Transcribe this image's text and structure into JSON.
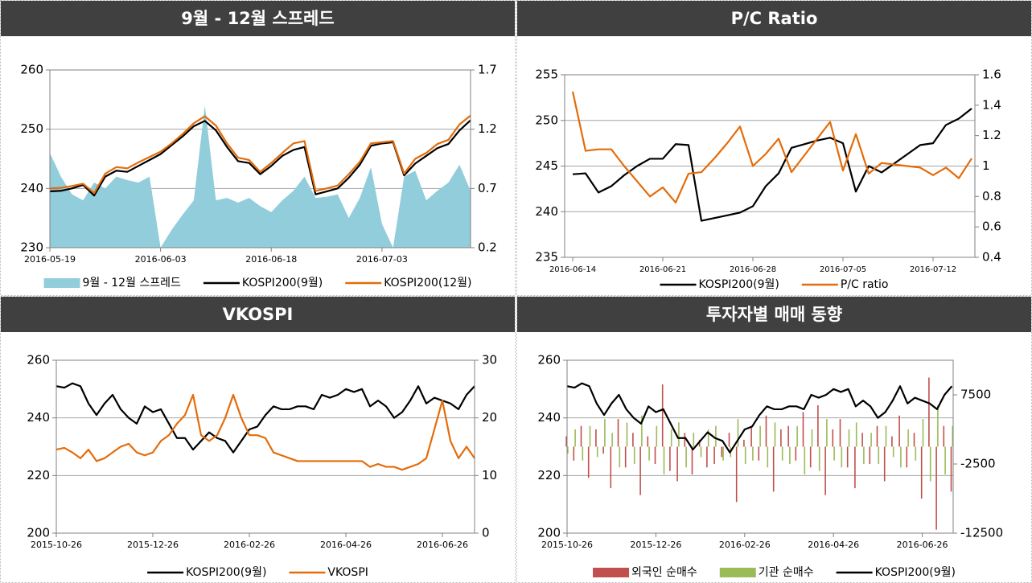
{
  "chart_data": [
    {
      "type": "area_line",
      "title": "9월 - 12월 스프레드",
      "categories": [
        "2016-05-19",
        null,
        null,
        null,
        null,
        null,
        null,
        null,
        null,
        null,
        "2016-06-03",
        null,
        null,
        null,
        null,
        null,
        null,
        null,
        null,
        null,
        "2016-06-18",
        null,
        null,
        null,
        null,
        null,
        null,
        null,
        null,
        null,
        "2016-07-03",
        null,
        null,
        null,
        null,
        null,
        null,
        null,
        null
      ],
      "ylim": [
        230,
        260
      ],
      "yticks": [
        230,
        240,
        250,
        260
      ],
      "y2lim": [
        0.2,
        1.7
      ],
      "y2ticks": [
        0.2,
        0.7,
        1.2,
        1.7
      ],
      "grid": true,
      "legend": "bottom",
      "series": [
        {
          "name": "9월 - 12월 스프레드",
          "kind": "area",
          "axis": "y2",
          "color": "#92cddc",
          "values": [
            1.0,
            0.8,
            0.65,
            0.6,
            0.75,
            0.7,
            0.8,
            0.77,
            0.75,
            0.8,
            0.2,
            0.35,
            0.48,
            0.6,
            1.4,
            0.6,
            0.62,
            0.58,
            0.62,
            0.55,
            0.5,
            0.6,
            0.68,
            0.8,
            0.62,
            0.63,
            0.65,
            0.45,
            0.62,
            0.88,
            0.4,
            0.2,
            0.8,
            0.85,
            0.6,
            0.68,
            0.75,
            0.9,
            0.68
          ]
        },
        {
          "name": "KOSPI200(9월)",
          "kind": "line",
          "color": "#000000",
          "values": [
            239.5,
            239.6,
            240.0,
            240.6,
            238.8,
            242.0,
            243.0,
            242.8,
            243.8,
            244.8,
            245.8,
            247.3,
            248.8,
            250.5,
            251.4,
            249.8,
            247.0,
            244.6,
            244.3,
            242.4,
            243.8,
            245.5,
            246.5,
            247.0,
            239.0,
            239.5,
            240.0,
            241.8,
            244.0,
            247.2,
            247.6,
            247.8,
            242.2,
            244.2,
            245.5,
            246.8,
            247.5,
            249.8,
            251.5
          ]
        },
        {
          "name": "KOSPI200(12월)",
          "kind": "line",
          "color": "#e46c0a",
          "values": [
            240.0,
            240.1,
            240.4,
            240.8,
            239.2,
            242.5,
            243.6,
            243.4,
            244.4,
            245.3,
            246.2,
            247.6,
            249.2,
            251.0,
            252.2,
            250.6,
            247.6,
            245.2,
            244.8,
            242.8,
            244.3,
            246.0,
            247.6,
            248.0,
            239.6,
            240.0,
            240.5,
            242.4,
            244.5,
            247.6,
            247.8,
            248.0,
            242.5,
            245.0,
            246.0,
            247.5,
            248.2,
            250.8,
            252.3
          ]
        }
      ]
    },
    {
      "type": "line",
      "title": "P/C Ratio",
      "categories": [
        "2016-06-14",
        null,
        null,
        null,
        null,
        null,
        null,
        "2016-06-21",
        null,
        null,
        null,
        null,
        null,
        null,
        "2016-06-28",
        null,
        null,
        null,
        null,
        null,
        null,
        "2016-07-05",
        null,
        null,
        null,
        null,
        null,
        null,
        "2016-07-12",
        null,
        null,
        null
      ],
      "ylim": [
        235,
        255
      ],
      "yticks": [
        235,
        240,
        245,
        250,
        255
      ],
      "y2lim": [
        0.4,
        1.6
      ],
      "y2ticks": [
        0.4,
        0.6,
        0.8,
        1,
        1.2,
        1.4,
        1.6
      ],
      "grid": true,
      "legend": "bottom",
      "series": [
        {
          "name": "KOSPI200(9월)",
          "kind": "line",
          "color": "#000000",
          "values": [
            244.1,
            244.2,
            242.1,
            242.8,
            244,
            245,
            245.8,
            245.8,
            247.4,
            247.3,
            239.0,
            239.3,
            239.6,
            239.9,
            240.6,
            242.8,
            244.2,
            247.0,
            247.4,
            247.8,
            248.1,
            247.5,
            242.2,
            245.0,
            244.3,
            245.3,
            246.3,
            247.3,
            247.5,
            249.5,
            250.2,
            251.3
          ]
        },
        {
          "name": "P/C ratio",
          "kind": "line",
          "axis": "y2",
          "color": "#e46c0a",
          "values": [
            1.49,
            1.1,
            1.11,
            1.11,
            1.0,
            0.9,
            0.8,
            0.86,
            0.76,
            0.95,
            0.96,
            1.05,
            1.15,
            1.26,
            1.0,
            1.08,
            1.18,
            0.96,
            1.07,
            1.18,
            1.29,
            0.97,
            1.21,
            0.95,
            1.02,
            1.01,
            1.0,
            0.99,
            0.94,
            0.99,
            0.92,
            1.05
          ]
        }
      ]
    },
    {
      "type": "line",
      "title": "VKOSPI",
      "categories": [
        "2015-10-26",
        null,
        null,
        null,
        null,
        null,
        null,
        null,
        null,
        null,
        null,
        null,
        "2015-12-26",
        null,
        null,
        null,
        null,
        null,
        null,
        null,
        null,
        null,
        null,
        null,
        "2016-02-26",
        null,
        null,
        null,
        null,
        null,
        null,
        null,
        null,
        null,
        null,
        null,
        "2016-04-26",
        null,
        null,
        null,
        null,
        null,
        null,
        null,
        null,
        null,
        null,
        null,
        "2016-06-26",
        null,
        null,
        null,
        null
      ],
      "ylim": [
        200,
        260
      ],
      "yticks": [
        200,
        220,
        240,
        260
      ],
      "y2lim": [
        0,
        30
      ],
      "y2ticks": [
        0,
        10,
        20,
        30
      ],
      "grid": true,
      "legend": "bottom",
      "series": [
        {
          "name": "KOSPI200(9월)",
          "kind": "line",
          "color": "#000000",
          "values": [
            251,
            250.5,
            252,
            251,
            245,
            241,
            245,
            248,
            243,
            240,
            238,
            244,
            242,
            243,
            238,
            233,
            233,
            229,
            232,
            235,
            233,
            232,
            228,
            232,
            236,
            237,
            241,
            244,
            243,
            243,
            244,
            244,
            243,
            248,
            247,
            248,
            250,
            249,
            250,
            244,
            246,
            244,
            240,
            242,
            246,
            251,
            245,
            247,
            246,
            245,
            243,
            248,
            251
          ]
        },
        {
          "name": "VKOSPI",
          "kind": "line",
          "axis": "y2",
          "color": "#e46c0a",
          "values": [
            14.5,
            14.8,
            14.0,
            13.0,
            14.5,
            12.5,
            13.0,
            14.0,
            15.0,
            15.5,
            14.0,
            13.5,
            14.0,
            16.0,
            17.0,
            19.0,
            20.5,
            24.0,
            17.0,
            16.0,
            17.0,
            20.0,
            24.0,
            20.0,
            17.0,
            17.0,
            16.5,
            14.0,
            13.5,
            13.0,
            12.5,
            12.5,
            12.5,
            12.5,
            12.5,
            12.5,
            12.5,
            12.5,
            12.5,
            11.5,
            12.0,
            11.5,
            11.5,
            11.0,
            11.5,
            12.0,
            13.0,
            18.0,
            23.0,
            16.0,
            13.0,
            15.0,
            13.0
          ]
        }
      ]
    },
    {
      "type": "bar_line",
      "title": "투자자별 매매 동향",
      "categories": [
        "2015-10-26",
        null,
        null,
        null,
        null,
        null,
        null,
        null,
        null,
        null,
        null,
        null,
        "2015-12-26",
        null,
        null,
        null,
        null,
        null,
        null,
        null,
        null,
        null,
        null,
        null,
        "2016-02-26",
        null,
        null,
        null,
        null,
        null,
        null,
        null,
        null,
        null,
        null,
        null,
        "2016-04-26",
        null,
        null,
        null,
        null,
        null,
        null,
        null,
        null,
        null,
        null,
        null,
        "2016-06-26",
        null,
        null,
        null,
        null
      ],
      "ylim": [
        200,
        260
      ],
      "yticks": [
        200,
        220,
        240,
        260
      ],
      "y2lim": [
        -12500,
        12500
      ],
      "y2ticks": [
        -12500,
        -2500,
        7500
      ],
      "grid": true,
      "legend": "bottom",
      "series": [
        {
          "name": "외국인 순매수",
          "kind": "bar",
          "axis": "y2",
          "color": "#c0504d",
          "values": [
            1500,
            -2000,
            3000,
            -4500,
            2500,
            -1000,
            -6000,
            4000,
            -3000,
            2000,
            -7000,
            1500,
            -2500,
            9000,
            -3500,
            -5000,
            2000,
            -4000,
            1000,
            -3000,
            -2500,
            -1500,
            2000,
            -8000,
            1000,
            3000,
            -2000,
            4500,
            -6500,
            2500,
            3000,
            -2000,
            5000,
            -3000,
            6000,
            -7000,
            2500,
            4000,
            -3000,
            -6000,
            2000,
            -2500,
            3000,
            -5000,
            1500,
            4500,
            -3000,
            2000,
            -7500,
            10000,
            -12000,
            3000,
            -6500
          ]
        },
        {
          "name": "기관 순매수",
          "kind": "bar",
          "axis": "y2",
          "color": "#9bbb59",
          "values": [
            -1000,
            2500,
            -2000,
            3000,
            -1500,
            4000,
            2000,
            -3000,
            3500,
            -2500,
            4500,
            -2000,
            3000,
            -4000,
            2500,
            3500,
            -3000,
            2000,
            -1500,
            2500,
            3000,
            -2000,
            -1500,
            4000,
            -2500,
            -2000,
            3000,
            -3000,
            3500,
            -2000,
            -2500,
            3000,
            -4000,
            2500,
            -3500,
            4000,
            -2000,
            -3000,
            2500,
            3500,
            -2500,
            2000,
            -2500,
            3000,
            -1500,
            -3000,
            2500,
            -2000,
            4000,
            -5000,
            6000,
            -4000,
            3000
          ]
        },
        {
          "name": "KOSPI200(9월)",
          "kind": "line",
          "color": "#000000",
          "values": [
            251,
            250.5,
            252,
            251,
            245,
            241,
            245,
            248,
            243,
            240,
            238,
            244,
            242,
            243,
            238,
            233,
            233,
            229,
            232,
            235,
            233,
            232,
            228,
            232,
            236,
            237,
            241,
            244,
            243,
            243,
            244,
            244,
            243,
            248,
            247,
            248,
            250,
            249,
            250,
            244,
            246,
            244,
            240,
            242,
            246,
            251,
            245,
            247,
            246,
            245,
            243,
            248,
            251
          ]
        }
      ]
    }
  ]
}
